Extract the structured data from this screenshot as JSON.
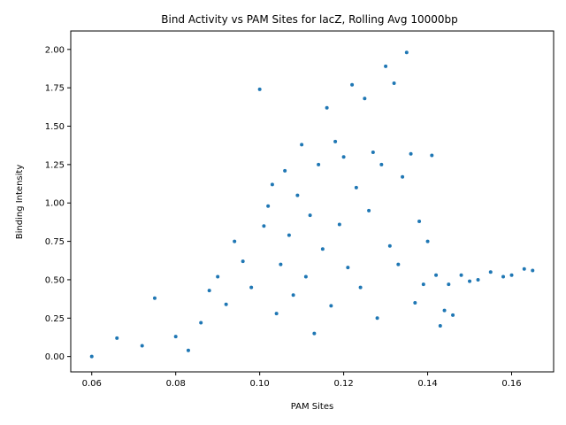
{
  "chart_data": {
    "type": "scatter",
    "title": "Bind Activity vs PAM Sites for lacZ, Rolling Avg 10000bp",
    "xlabel": "PAM Sites",
    "ylabel": "Binding Intensity",
    "xlim": [
      0.055,
      0.17
    ],
    "ylim": [
      -0.1,
      2.12
    ],
    "xticks": [
      0.06,
      0.08,
      0.1,
      0.12,
      0.14,
      0.16
    ],
    "xtick_labels": [
      "0.06",
      "0.08",
      "0.10",
      "0.12",
      "0.14",
      "0.16"
    ],
    "yticks": [
      0.0,
      0.25,
      0.5,
      0.75,
      1.0,
      1.25,
      1.5,
      1.75,
      2.0
    ],
    "ytick_labels": [
      "0.00",
      "0.25",
      "0.50",
      "0.75",
      "1.00",
      "1.25",
      "1.50",
      "1.75",
      "2.00"
    ],
    "grid": false,
    "series_color": "#1f77b4",
    "series": [
      {
        "points": [
          [
            0.06,
            0.0
          ],
          [
            0.066,
            0.12
          ],
          [
            0.072,
            0.07
          ],
          [
            0.075,
            0.38
          ],
          [
            0.08,
            0.13
          ],
          [
            0.083,
            0.04
          ],
          [
            0.086,
            0.22
          ],
          [
            0.088,
            0.43
          ],
          [
            0.09,
            0.52
          ],
          [
            0.092,
            0.34
          ],
          [
            0.094,
            0.75
          ],
          [
            0.096,
            0.62
          ],
          [
            0.098,
            0.45
          ],
          [
            0.1,
            1.74
          ],
          [
            0.101,
            0.85
          ],
          [
            0.102,
            0.98
          ],
          [
            0.103,
            1.12
          ],
          [
            0.104,
            0.28
          ],
          [
            0.105,
            0.6
          ],
          [
            0.106,
            1.21
          ],
          [
            0.107,
            0.79
          ],
          [
            0.108,
            0.4
          ],
          [
            0.109,
            1.05
          ],
          [
            0.11,
            1.38
          ],
          [
            0.111,
            0.52
          ],
          [
            0.112,
            0.92
          ],
          [
            0.113,
            0.15
          ],
          [
            0.114,
            1.25
          ],
          [
            0.115,
            0.7
          ],
          [
            0.116,
            1.62
          ],
          [
            0.117,
            0.33
          ],
          [
            0.118,
            1.4
          ],
          [
            0.119,
            0.86
          ],
          [
            0.12,
            1.3
          ],
          [
            0.121,
            0.58
          ],
          [
            0.122,
            1.77
          ],
          [
            0.123,
            1.1
          ],
          [
            0.124,
            0.45
          ],
          [
            0.125,
            1.68
          ],
          [
            0.126,
            0.95
          ],
          [
            0.127,
            1.33
          ],
          [
            0.128,
            0.25
          ],
          [
            0.129,
            1.25
          ],
          [
            0.13,
            1.89
          ],
          [
            0.131,
            0.72
          ],
          [
            0.132,
            1.78
          ],
          [
            0.133,
            0.6
          ],
          [
            0.134,
            1.17
          ],
          [
            0.135,
            1.98
          ],
          [
            0.136,
            1.32
          ],
          [
            0.137,
            0.35
          ],
          [
            0.138,
            0.88
          ],
          [
            0.139,
            0.47
          ],
          [
            0.14,
            0.75
          ],
          [
            0.141,
            1.31
          ],
          [
            0.142,
            0.53
          ],
          [
            0.143,
            0.2
          ],
          [
            0.144,
            0.3
          ],
          [
            0.145,
            0.47
          ],
          [
            0.146,
            0.27
          ],
          [
            0.148,
            0.53
          ],
          [
            0.15,
            0.49
          ],
          [
            0.152,
            0.5
          ],
          [
            0.155,
            0.55
          ],
          [
            0.158,
            0.52
          ],
          [
            0.16,
            0.53
          ],
          [
            0.163,
            0.57
          ],
          [
            0.165,
            0.56
          ]
        ]
      }
    ]
  }
}
